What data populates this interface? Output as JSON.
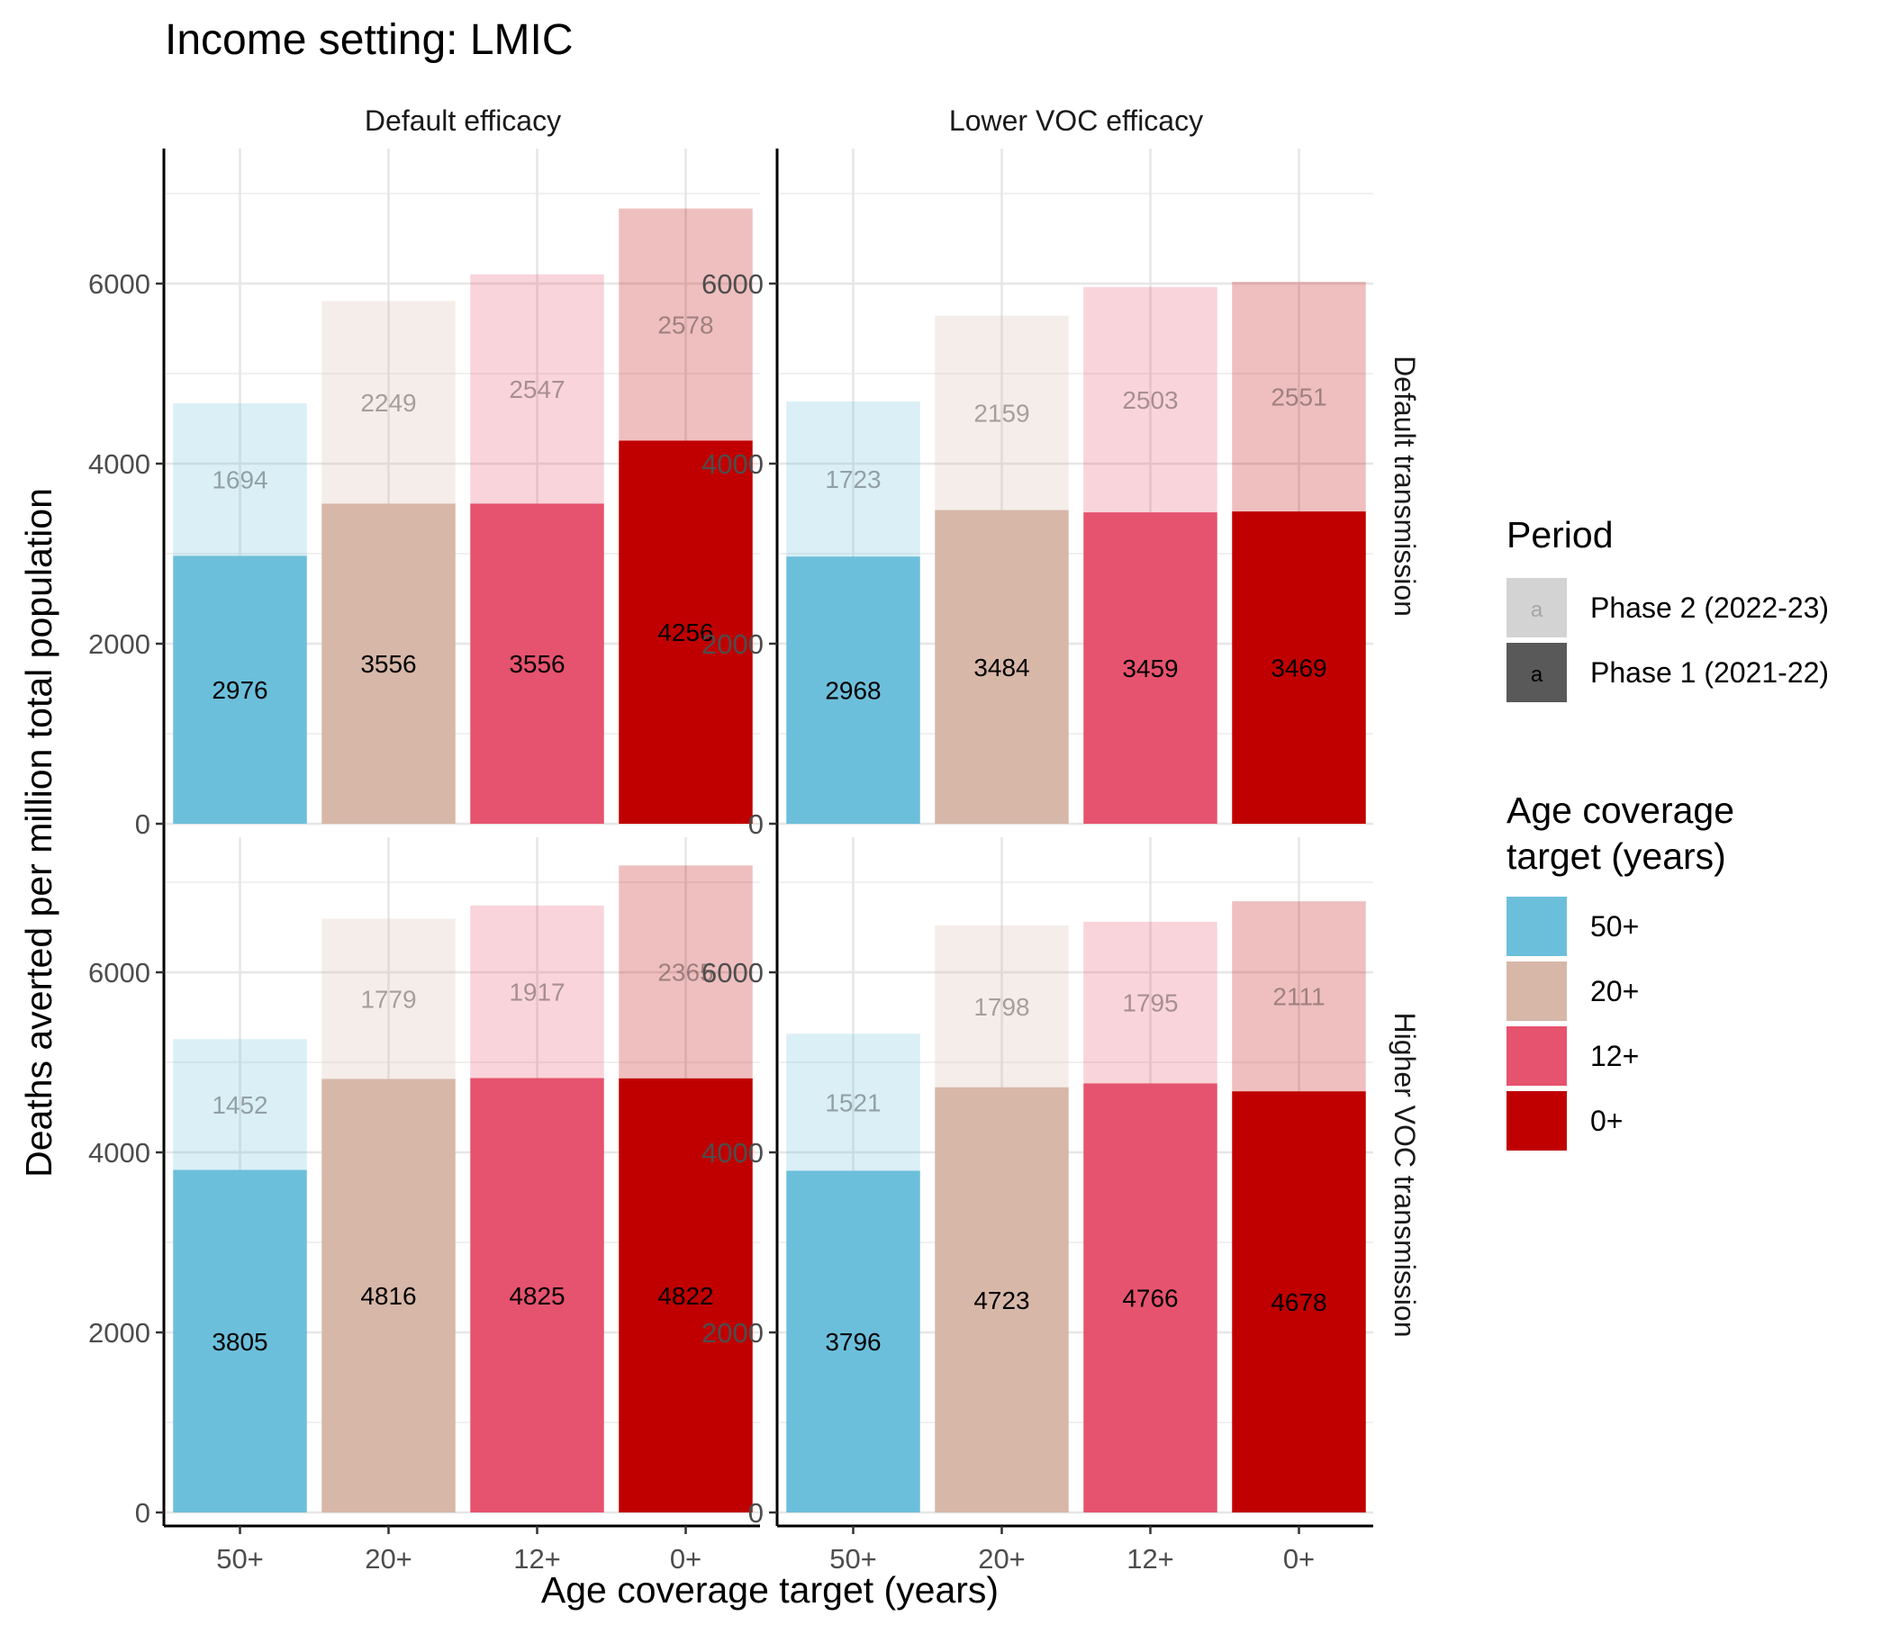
{
  "chart_data": {
    "type": "bar",
    "title": "Income setting: LMIC",
    "xlabel": "Age coverage target (years)",
    "ylabel": "Deaths averted per million total population",
    "categories": [
      "50+",
      "20+",
      "12+",
      "0+"
    ],
    "ylim": [
      0,
      7500
    ],
    "yticks": [
      0,
      2000,
      4000,
      6000
    ],
    "grid": true,
    "stacked": true,
    "column_facets": [
      "Default efficacy",
      "Lower VOC efficacy"
    ],
    "row_facets": [
      "Default transmission",
      "Higher VOC transmission"
    ],
    "colors": {
      "50+": "#6cbfdb",
      "20+": "#d7b7a8",
      "12+": "#e6536e",
      "0+": "#c00000",
      "phase2_alpha": 0.25
    },
    "panels": [
      {
        "column": "Default efficacy",
        "row": "Default transmission",
        "phase1": [
          2976,
          3556,
          3556,
          4256
        ],
        "phase2": [
          1694,
          2249,
          2547,
          2578
        ]
      },
      {
        "column": "Lower VOC efficacy",
        "row": "Default transmission",
        "phase1": [
          2968,
          3484,
          3459,
          3469
        ],
        "phase2": [
          1723,
          2159,
          2503,
          2551
        ]
      },
      {
        "column": "Default efficacy",
        "row": "Higher VOC transmission",
        "phase1": [
          3805,
          4816,
          4825,
          4822
        ],
        "phase2": [
          1452,
          1779,
          1917,
          2365
        ]
      },
      {
        "column": "Lower VOC efficacy",
        "row": "Higher VOC transmission",
        "phase1": [
          3796,
          4723,
          4766,
          4678
        ],
        "phase2": [
          1521,
          1798,
          1795,
          2111
        ]
      }
    ],
    "legend": {
      "position": "right",
      "period_title": "Period",
      "period_items": [
        {
          "label": "Phase 2 (2022-23)",
          "key": "a",
          "color": "#d3d3d3",
          "key_color": "#a6a6a6"
        },
        {
          "label": "Phase 1 (2021-22)",
          "key": "a",
          "color": "#595959",
          "key_color": "#000000"
        }
      ],
      "age_title_lines": [
        "Age coverage",
        "target (years)"
      ],
      "age_items": [
        "50+",
        "20+",
        "12+",
        "0+"
      ]
    }
  }
}
